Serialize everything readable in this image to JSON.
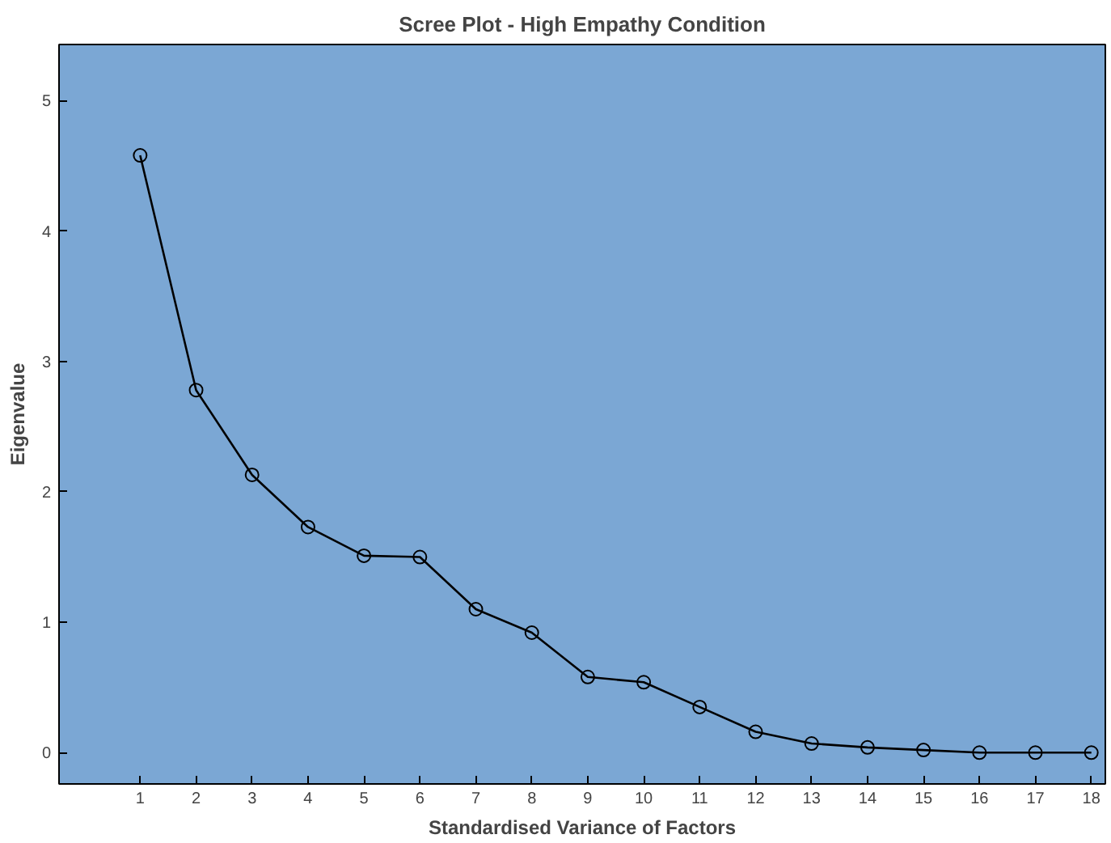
{
  "chart_data": {
    "type": "line",
    "title": "Scree Plot - High Empathy Condition",
    "xlabel": "Standardised Variance of Factors",
    "ylabel": "Eigenvalue",
    "x": [
      1,
      2,
      3,
      4,
      5,
      6,
      7,
      8,
      9,
      10,
      11,
      12,
      13,
      14,
      15,
      16,
      17,
      18
    ],
    "series": [
      {
        "color": "#000000",
        "values": [
          4.58,
          2.78,
          2.13,
          1.73,
          1.51,
          1.5,
          1.1,
          0.92,
          0.58,
          0.54,
          0.35,
          0.16,
          0.07,
          0.04,
          0.02,
          0.0,
          0.0,
          0.0
        ]
      }
    ],
    "xlim": [
      -0.45,
      18.25
    ],
    "ylim": [
      -0.24,
      5.43
    ],
    "xticks": [
      1,
      2,
      3,
      4,
      5,
      6,
      7,
      8,
      9,
      10,
      11,
      12,
      13,
      14,
      15,
      16,
      17,
      18
    ],
    "yticks": [
      0,
      1,
      2,
      3,
      4,
      5
    ],
    "grid": false,
    "marker": "circle",
    "line_style": "solid"
  }
}
